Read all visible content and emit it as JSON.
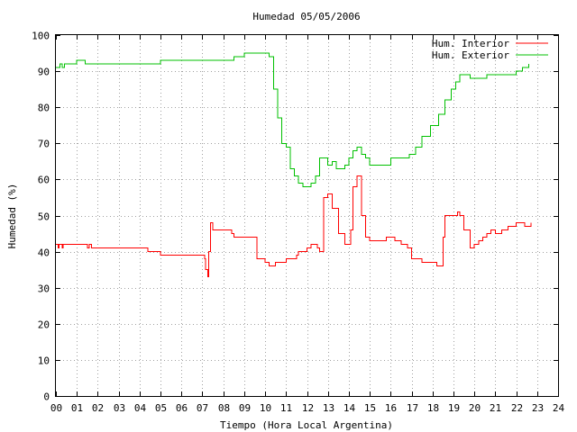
{
  "chart_data": {
    "type": "line",
    "title": "Humedad 05/05/2006",
    "xlabel": "Tiempo (Hora Local Argentina)",
    "ylabel": "Humedad (%)",
    "xlim": [
      0,
      24
    ],
    "ylim": [
      0,
      100
    ],
    "grid": true,
    "legend": "top-right",
    "xticks": [
      "00",
      "01",
      "02",
      "03",
      "04",
      "05",
      "06",
      "07",
      "08",
      "09",
      "10",
      "11",
      "12",
      "13",
      "14",
      "15",
      "16",
      "17",
      "18",
      "19",
      "20",
      "21",
      "22",
      "23",
      "24"
    ],
    "yticks": [
      "0",
      "10",
      "20",
      "30",
      "40",
      "50",
      "60",
      "70",
      "80",
      "90",
      "100"
    ],
    "series": [
      {
        "name": "Hum. Interior",
        "color": "#ff0000",
        "x": [
          0,
          0.1,
          0.15,
          0.3,
          0.35,
          1.5,
          1.6,
          1.7,
          3.5,
          4.4,
          4.5,
          5.0,
          6.5,
          7.0,
          7.1,
          7.15,
          7.25,
          7.3,
          7.4,
          7.5,
          7.7,
          8.2,
          8.4,
          8.5,
          9.5,
          9.6,
          10.0,
          10.2,
          10.5,
          11.0,
          11.2,
          11.5,
          11.6,
          12.0,
          12.2,
          12.3,
          12.5,
          12.6,
          12.8,
          13.0,
          13.2,
          13.5,
          13.8,
          13.9,
          14.1,
          14.2,
          14.4,
          14.6,
          14.8,
          15.0,
          15.5,
          15.8,
          16.0,
          16.2,
          16.5,
          16.8,
          17.0,
          17.5,
          18.0,
          18.2,
          18.4,
          18.5,
          18.6,
          19.0,
          19.2,
          19.3,
          19.5,
          19.8,
          20.0,
          20.2,
          20.4,
          20.6,
          20.8,
          21.0,
          21.3,
          21.6,
          22.0,
          22.4,
          22.7
        ],
        "y": [
          42,
          41,
          42,
          41,
          42,
          41,
          42,
          41,
          41,
          40,
          40,
          39,
          39,
          39,
          38,
          35,
          33,
          40,
          48,
          46,
          46,
          46,
          45,
          44,
          44,
          38,
          37,
          36,
          37,
          38,
          38,
          39,
          40,
          41,
          42,
          42,
          41,
          40,
          55,
          56,
          52,
          45,
          42,
          42,
          46,
          58,
          61,
          50,
          44,
          43,
          43,
          44,
          44,
          43,
          42,
          41,
          38,
          37,
          37,
          36,
          36,
          44,
          50,
          50,
          51,
          50,
          46,
          41,
          42,
          43,
          44,
          45,
          46,
          45,
          46,
          47,
          48,
          47,
          48
        ]
      },
      {
        "name": "Hum. Exterior",
        "color": "#00c000",
        "x": [
          0,
          0.2,
          0.3,
          0.4,
          0.9,
          1.0,
          1.4,
          2.2,
          3.0,
          3.4,
          4.0,
          4.5,
          5.0,
          6.5,
          7.0,
          7.5,
          8.5,
          9.0,
          9.5,
          10.0,
          10.2,
          10.4,
          10.6,
          10.8,
          11.0,
          11.2,
          11.4,
          11.6,
          11.8,
          12.0,
          12.2,
          12.4,
          12.6,
          12.8,
          13.0,
          13.2,
          13.4,
          13.6,
          13.8,
          14.0,
          14.2,
          14.4,
          14.6,
          14.8,
          15.0,
          15.3,
          15.6,
          16.0,
          16.3,
          16.6,
          16.9,
          17.2,
          17.5,
          17.9,
          18.3,
          18.6,
          18.9,
          19.1,
          19.3,
          19.5,
          19.8,
          20.1,
          20.4,
          20.6,
          20.9,
          21.1,
          21.5,
          22.0,
          22.3,
          22.6
        ],
        "y": [
          91,
          92,
          91,
          92,
          92,
          93,
          92,
          92,
          92,
          92,
          92,
          92,
          93,
          93,
          93,
          93,
          94,
          95,
          95,
          95,
          94,
          85,
          77,
          70,
          69,
          63,
          61,
          59,
          58,
          58,
          59,
          61,
          66,
          66,
          64,
          65,
          63,
          63,
          64,
          66,
          68,
          69,
          67,
          66,
          64,
          64,
          64,
          66,
          66,
          66,
          67,
          69,
          72,
          75,
          78,
          82,
          85,
          87,
          89,
          89,
          88,
          88,
          88,
          89,
          89,
          89,
          89,
          90,
          91,
          92
        ]
      }
    ]
  }
}
